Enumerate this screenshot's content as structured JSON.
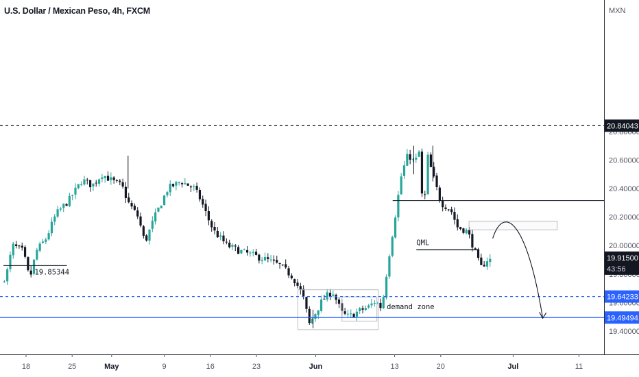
{
  "header": {
    "title": "U.S. Dollar / Mexican Peso, 4h, FXCM",
    "currency": "MXN"
  },
  "colors": {
    "bull": "#26a69a",
    "bear": "#131722",
    "blue_line": "#2962ff",
    "tag_blue": "#2962ff",
    "tag_dark": "#131722"
  },
  "chart_data": {
    "type": "candlestick",
    "title": "U.S. Dollar / Mexican Peso, 4h, FXCM",
    "ylabel": "MXN",
    "ylim": [
      19.29,
      20.92
    ],
    "y_ticks": [
      19.4,
      19.6,
      19.8,
      20.0,
      20.2,
      20.4,
      20.6,
      20.8
    ],
    "y_tick_labels": [
      "19.40000",
      "19.60000",
      "19.80000",
      "20.00000",
      "20.20000",
      "20.40000",
      "20.60000",
      "20.80000"
    ],
    "x_tick_labels": [
      {
        "label": "18",
        "day": 0,
        "bold": false
      },
      {
        "label": "25",
        "day": 7,
        "bold": false
      },
      {
        "label": "May",
        "day": 13,
        "bold": true
      },
      {
        "label": "9",
        "day": 21,
        "bold": false
      },
      {
        "label": "16",
        "day": 28,
        "bold": false
      },
      {
        "label": "23",
        "day": 35,
        "bold": false
      },
      {
        "label": "Jun",
        "day": 44,
        "bold": true
      },
      {
        "label": "13",
        "day": 56,
        "bold": false
      },
      {
        "label": "20",
        "day": 63,
        "bold": false
      },
      {
        "label": "Jul",
        "day": 74,
        "bold": true
      },
      {
        "label": "11",
        "day": 84,
        "bold": false
      }
    ],
    "price_path": [
      [
        -3.3,
        19.74
      ],
      [
        -2.5,
        19.8
      ],
      [
        -1.6,
        20.0
      ],
      [
        0.0,
        19.96
      ],
      [
        1.0,
        19.76
      ],
      [
        2.0,
        19.96
      ],
      [
        3.5,
        20.05
      ],
      [
        5.0,
        20.22
      ],
      [
        7.0,
        20.32
      ],
      [
        9.0,
        20.46
      ],
      [
        10.5,
        20.42
      ],
      [
        12.0,
        20.5
      ],
      [
        14.0,
        20.44
      ],
      [
        15.0,
        20.42
      ],
      [
        16.0,
        20.3
      ],
      [
        17.5,
        20.2
      ],
      [
        18.5,
        20.02
      ],
      [
        20.0,
        20.2
      ],
      [
        22.0,
        20.4
      ],
      [
        24.0,
        20.45
      ],
      [
        26.0,
        20.4
      ],
      [
        27.0,
        20.32
      ],
      [
        28.0,
        20.2
      ],
      [
        29.0,
        20.1
      ],
      [
        31.0,
        20.0
      ],
      [
        33.0,
        19.96
      ],
      [
        35.0,
        19.93
      ],
      [
        37.0,
        19.9
      ],
      [
        39.0,
        19.86
      ],
      [
        41.0,
        19.78
      ],
      [
        42.5,
        19.65
      ],
      [
        43.5,
        19.45
      ],
      [
        45.5,
        19.62
      ],
      [
        47.0,
        19.68
      ],
      [
        48.5,
        19.52
      ],
      [
        49.5,
        19.5
      ],
      [
        51.0,
        19.54
      ],
      [
        52.5,
        19.57
      ],
      [
        53.5,
        19.61
      ],
      [
        54.5,
        19.56
      ],
      [
        55.5,
        19.9
      ],
      [
        56.5,
        20.2
      ],
      [
        57.5,
        20.5
      ],
      [
        58.5,
        20.64
      ],
      [
        59.5,
        20.58
      ],
      [
        60.2,
        20.66
      ],
      [
        60.8,
        20.2
      ],
      [
        61.5,
        20.62
      ],
      [
        62.5,
        20.45
      ],
      [
        63.5,
        20.3
      ],
      [
        65.0,
        20.25
      ],
      [
        66.0,
        20.13
      ],
      [
        67.5,
        20.1
      ],
      [
        68.5,
        19.98
      ],
      [
        69.5,
        19.84
      ],
      [
        70.5,
        19.9
      ]
    ],
    "price_levels": [
      {
        "value": 20.84043,
        "label": "20.84043",
        "style": "dashed",
        "color": "#131722"
      },
      {
        "value": 19.64233,
        "label": "19.64233",
        "style": "dashed",
        "color": "#2962ff"
      },
      {
        "value": 19.49494,
        "label": "19.49494",
        "style": "solid",
        "color": "#2962ff"
      }
    ],
    "last_price": {
      "value": 19.915,
      "label": "19.91500",
      "countdown": "43:56"
    },
    "annotations": [
      {
        "text": "19.85344",
        "type": "horizontal-level"
      },
      {
        "text": "QML",
        "type": "label"
      },
      {
        "text": "demand zone",
        "type": "zone-label"
      }
    ]
  }
}
